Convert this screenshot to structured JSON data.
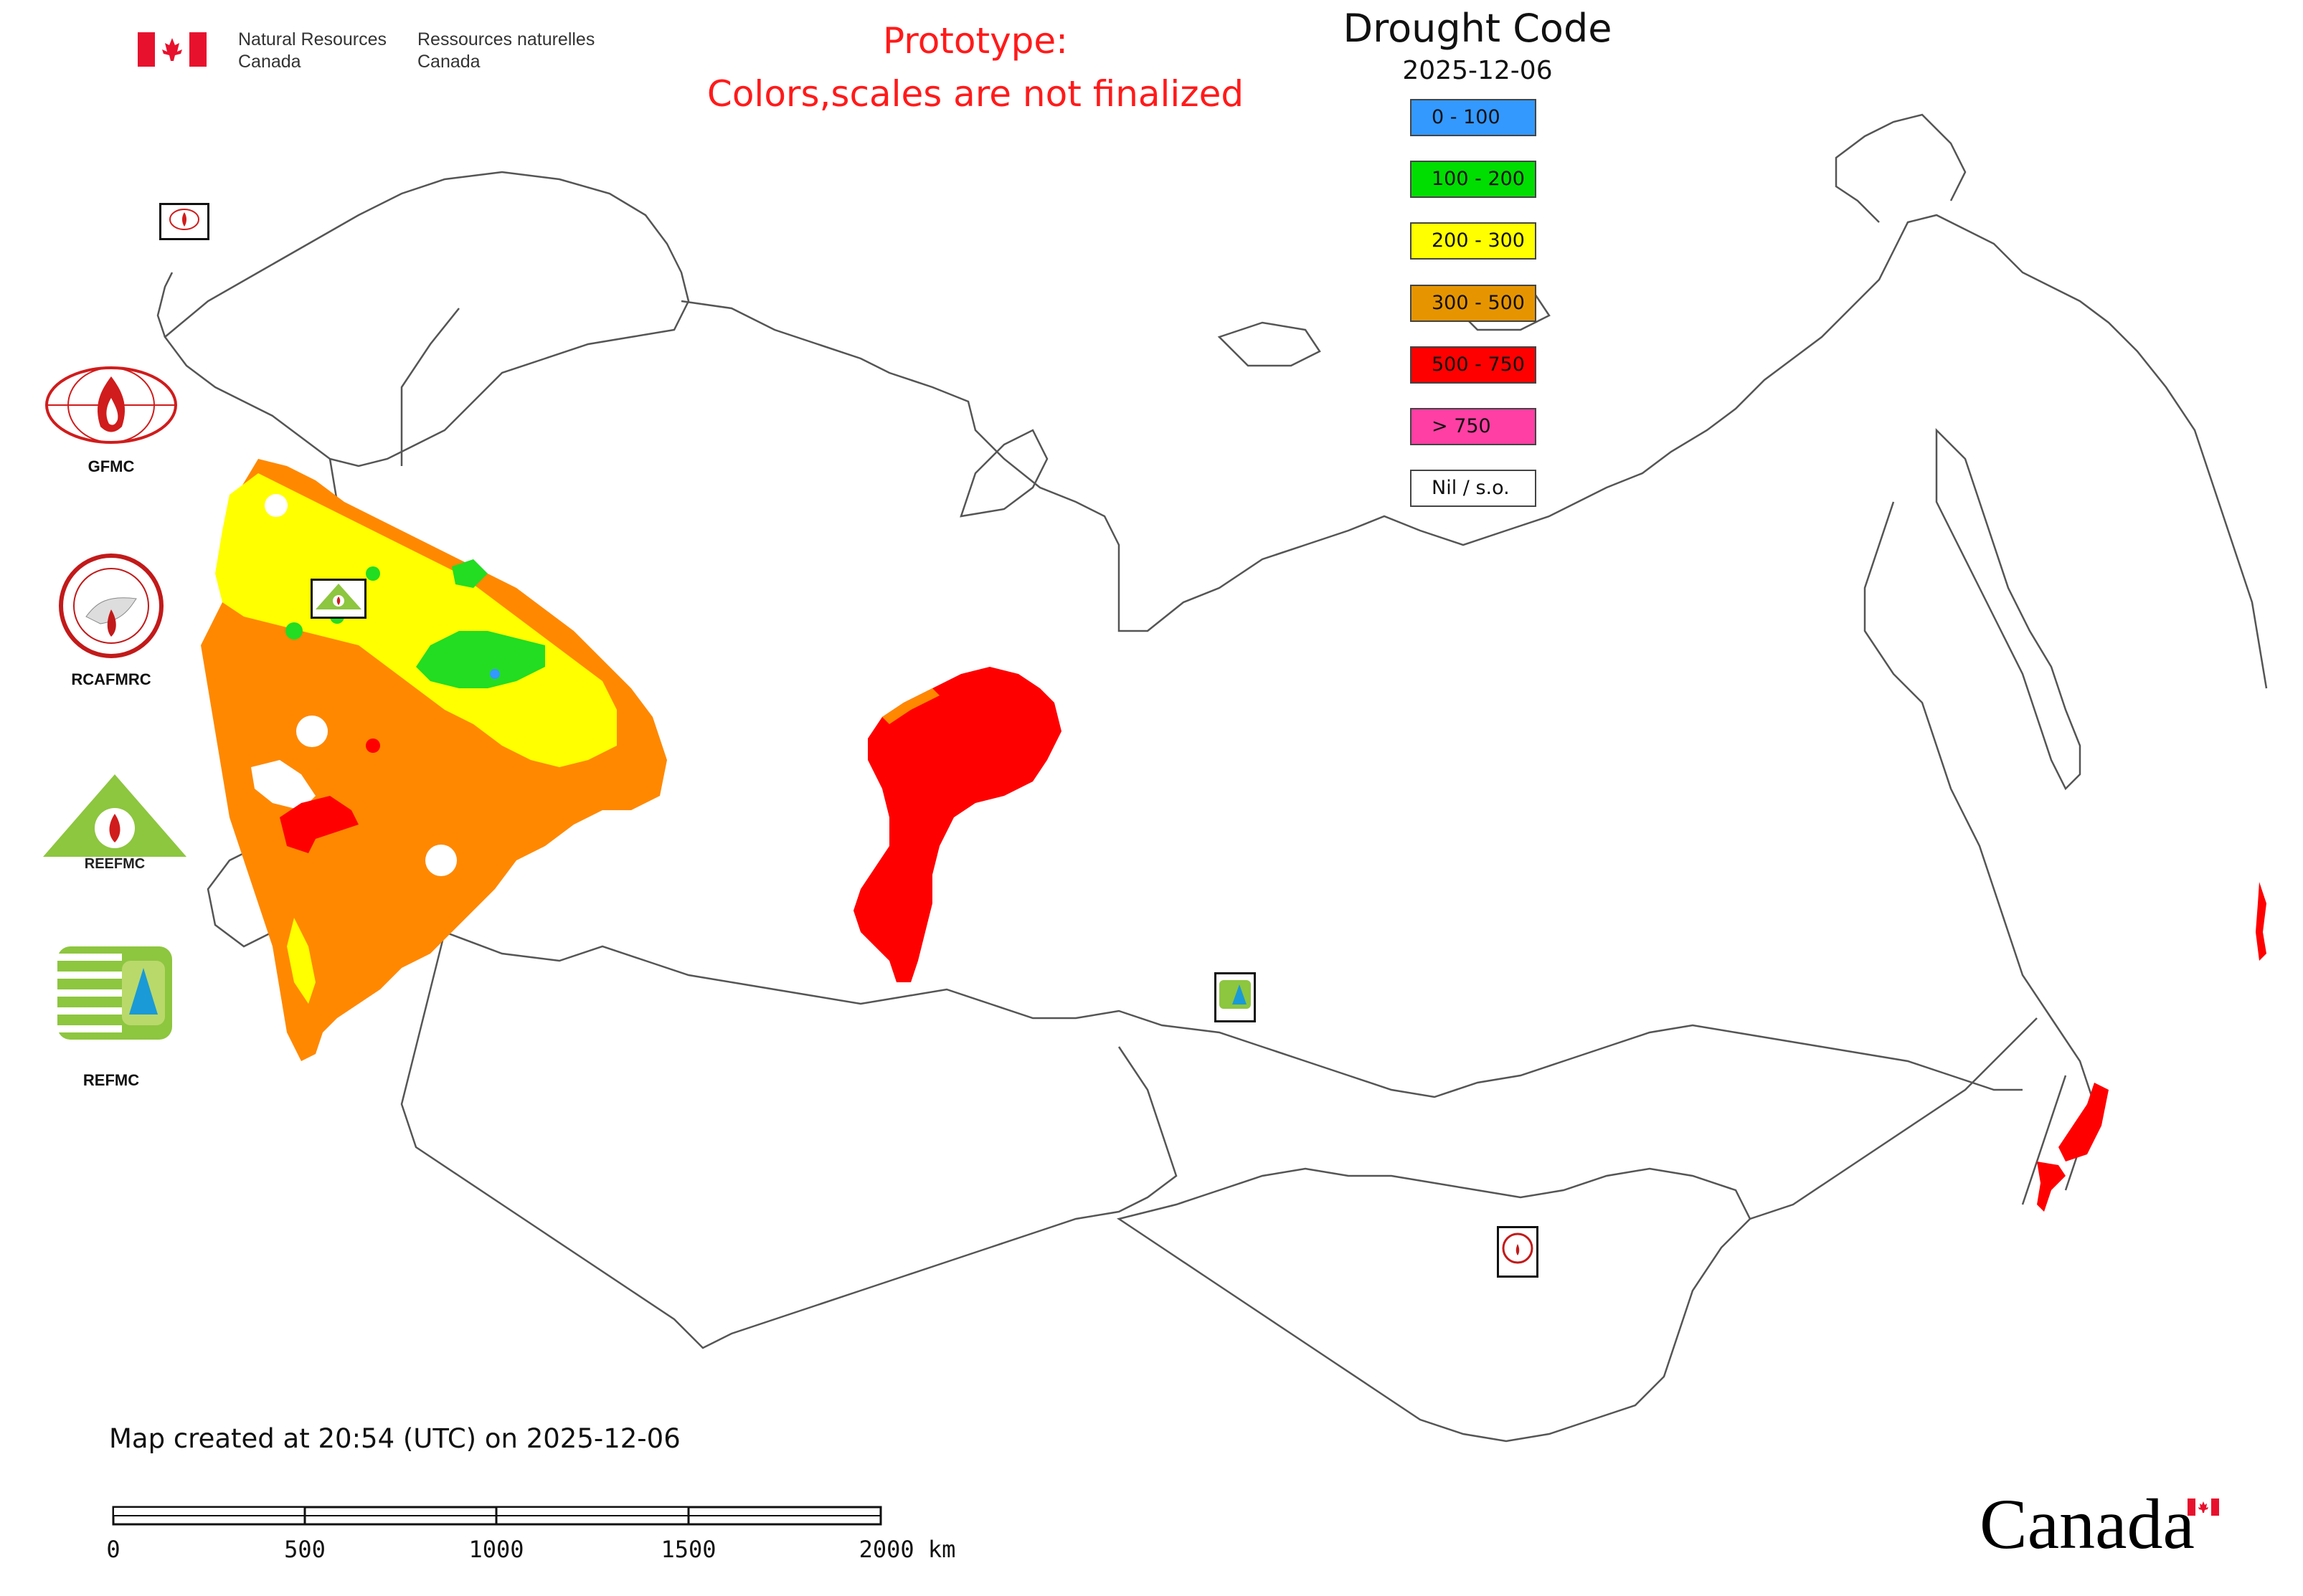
{
  "header": {
    "agency_en_line1": "Natural Resources",
    "agency_en_line2": "Canada",
    "agency_fr_line1": "Ressources naturelles",
    "agency_fr_line2": "Canada"
  },
  "notice": {
    "line1": "Prototype:",
    "line2": "Colors,scales are not finalized",
    "color": "#ff1a1a"
  },
  "legend": {
    "title": "Drought Code",
    "date": "2025-12-06",
    "items": [
      {
        "label": "0 - 100",
        "color": "#3399ff"
      },
      {
        "label": "100 - 200",
        "color": "#00dd00"
      },
      {
        "label": "200 - 300",
        "color": "#ffff00"
      },
      {
        "label": "300 - 500",
        "color": "#e69500"
      },
      {
        "label": "500 - 750",
        "color": "#ff0000"
      },
      {
        "label": "> 750",
        "color": "#ff3fa4"
      },
      {
        "label": "Nil / s.o.",
        "color": "#ffffff"
      }
    ]
  },
  "organizations": {
    "gfmc": "GFMC",
    "rcafmrc": "RCAFMRC",
    "reefmc": "REEFMC",
    "refmc": "REFMC"
  },
  "footer": {
    "created": "Map created at 20:54 (UTC) on 2025-12-06",
    "scale_labels": [
      "0",
      "500",
      "1000",
      "1500",
      "2000 km"
    ],
    "wordmark": "Canada"
  },
  "colors": {
    "orange": "#ff8800",
    "yellow": "#ffff00",
    "green": "#22dd22",
    "red": "#ff0000",
    "border": "#555555"
  }
}
